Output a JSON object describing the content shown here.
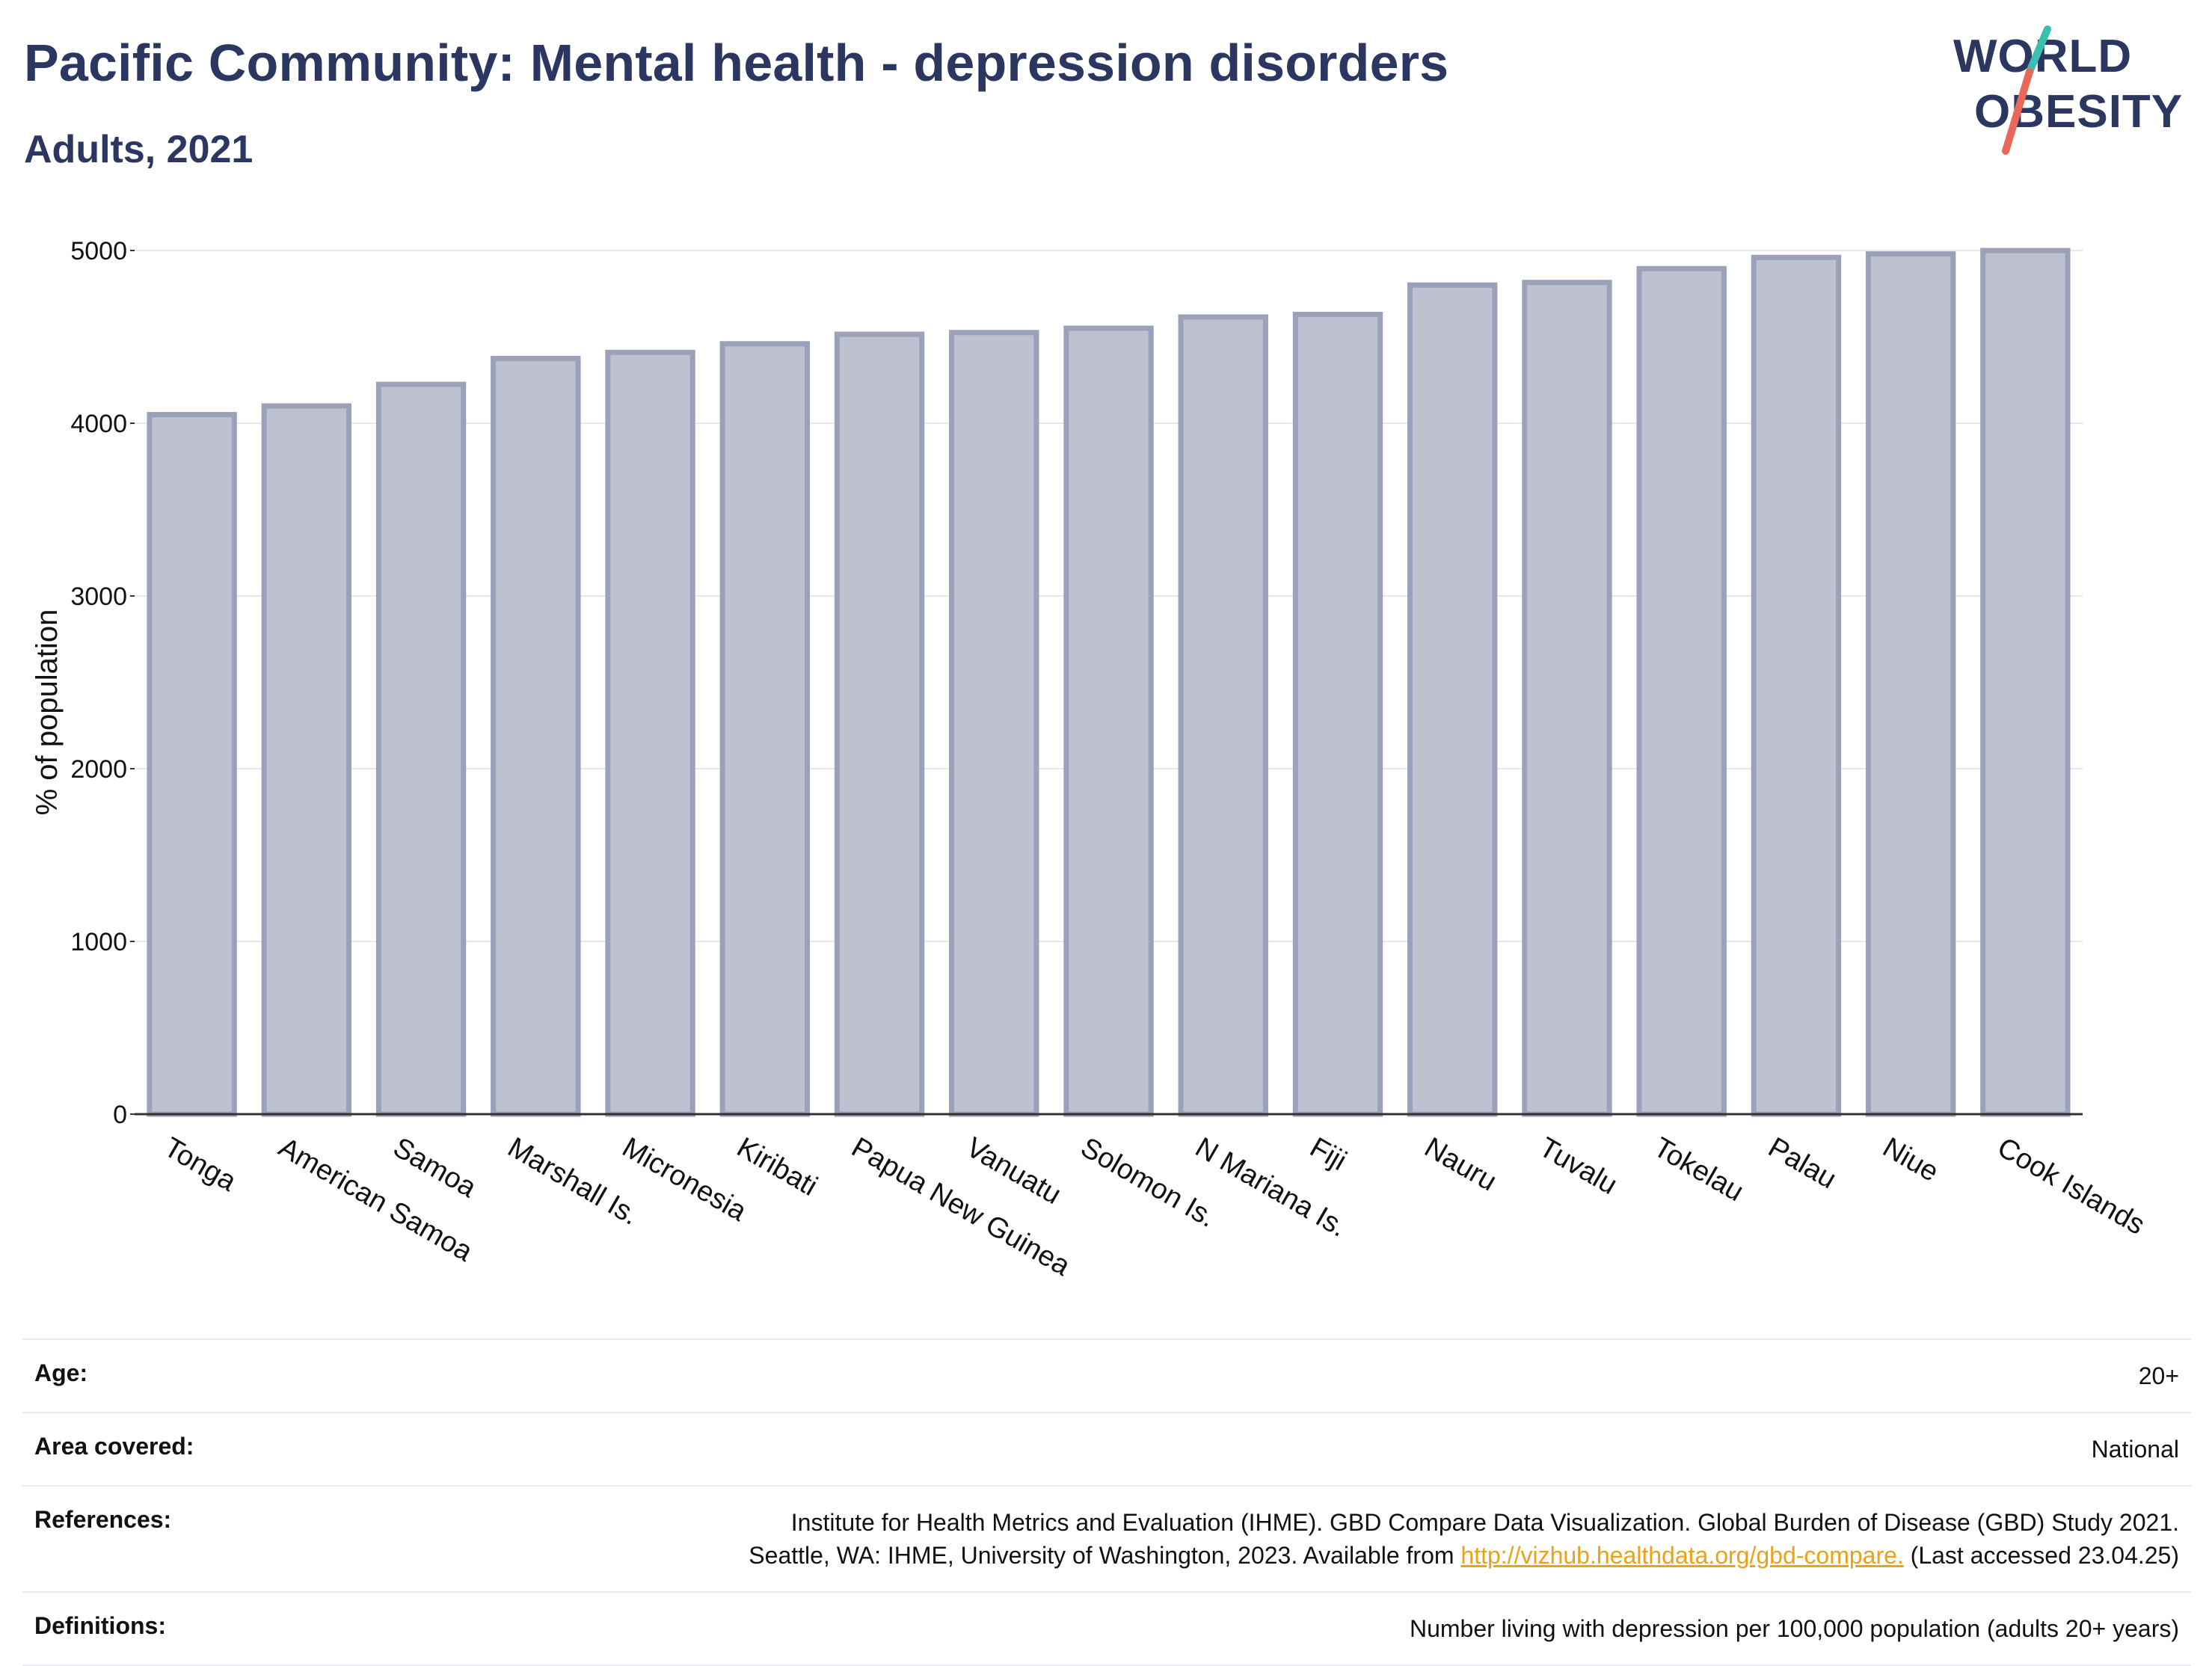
{
  "header": {
    "title": "Pacific Community: Mental health - depression disorders",
    "subtitle": "Adults, 2021"
  },
  "logo": {
    "line1": "WORLD",
    "line2": "OBESITY",
    "accent_teal": "#3bbfb0",
    "accent_red": "#e8685a"
  },
  "chart_data": {
    "type": "bar",
    "title": "",
    "xlabel": "",
    "ylabel": "% of population",
    "ylim": [
      0,
      5000
    ],
    "yticks": [
      0,
      1000,
      2000,
      3000,
      4000,
      5000
    ],
    "grid": true,
    "categories": [
      "Tonga",
      "American Samoa",
      "Samoa",
      "Marshall Is.",
      "Micronesia",
      "Kiribati",
      "Papua New Guinea",
      "Vanuatu",
      "Solomon Is.",
      "N Mariana Is.",
      "Fiji",
      "Nauru",
      "Tuvalu",
      "Tokelau",
      "Palau",
      "Niue",
      "Cook Islands"
    ],
    "values": [
      4050,
      4100,
      4225,
      4375,
      4410,
      4460,
      4515,
      4525,
      4550,
      4615,
      4630,
      4800,
      4815,
      4895,
      4960,
      4980,
      5000
    ],
    "bar_color": "#bec2d0",
    "bar_edge_color": "#9aa1b8"
  },
  "meta": {
    "rows": [
      {
        "key": "Age:",
        "value": "20+"
      },
      {
        "key": "Area covered:",
        "value": "National"
      },
      {
        "key": "References:",
        "value_line1": "Institute for Health Metrics and Evaluation (IHME). GBD Compare Data Visualization. Global Burden of Disease (GBD) Study 2021.",
        "value_line2_prefix": "Seattle, WA: IHME, University of Washington, 2023. Available from ",
        "link": "http://vizhub.healthdata.org/gbd-compare.",
        "value_line2_suffix": " (Last accessed 23.04.25)"
      },
      {
        "key": "Definitions:",
        "value": "Number living with depression per 100,000 population (adults 20+ years)"
      }
    ]
  }
}
